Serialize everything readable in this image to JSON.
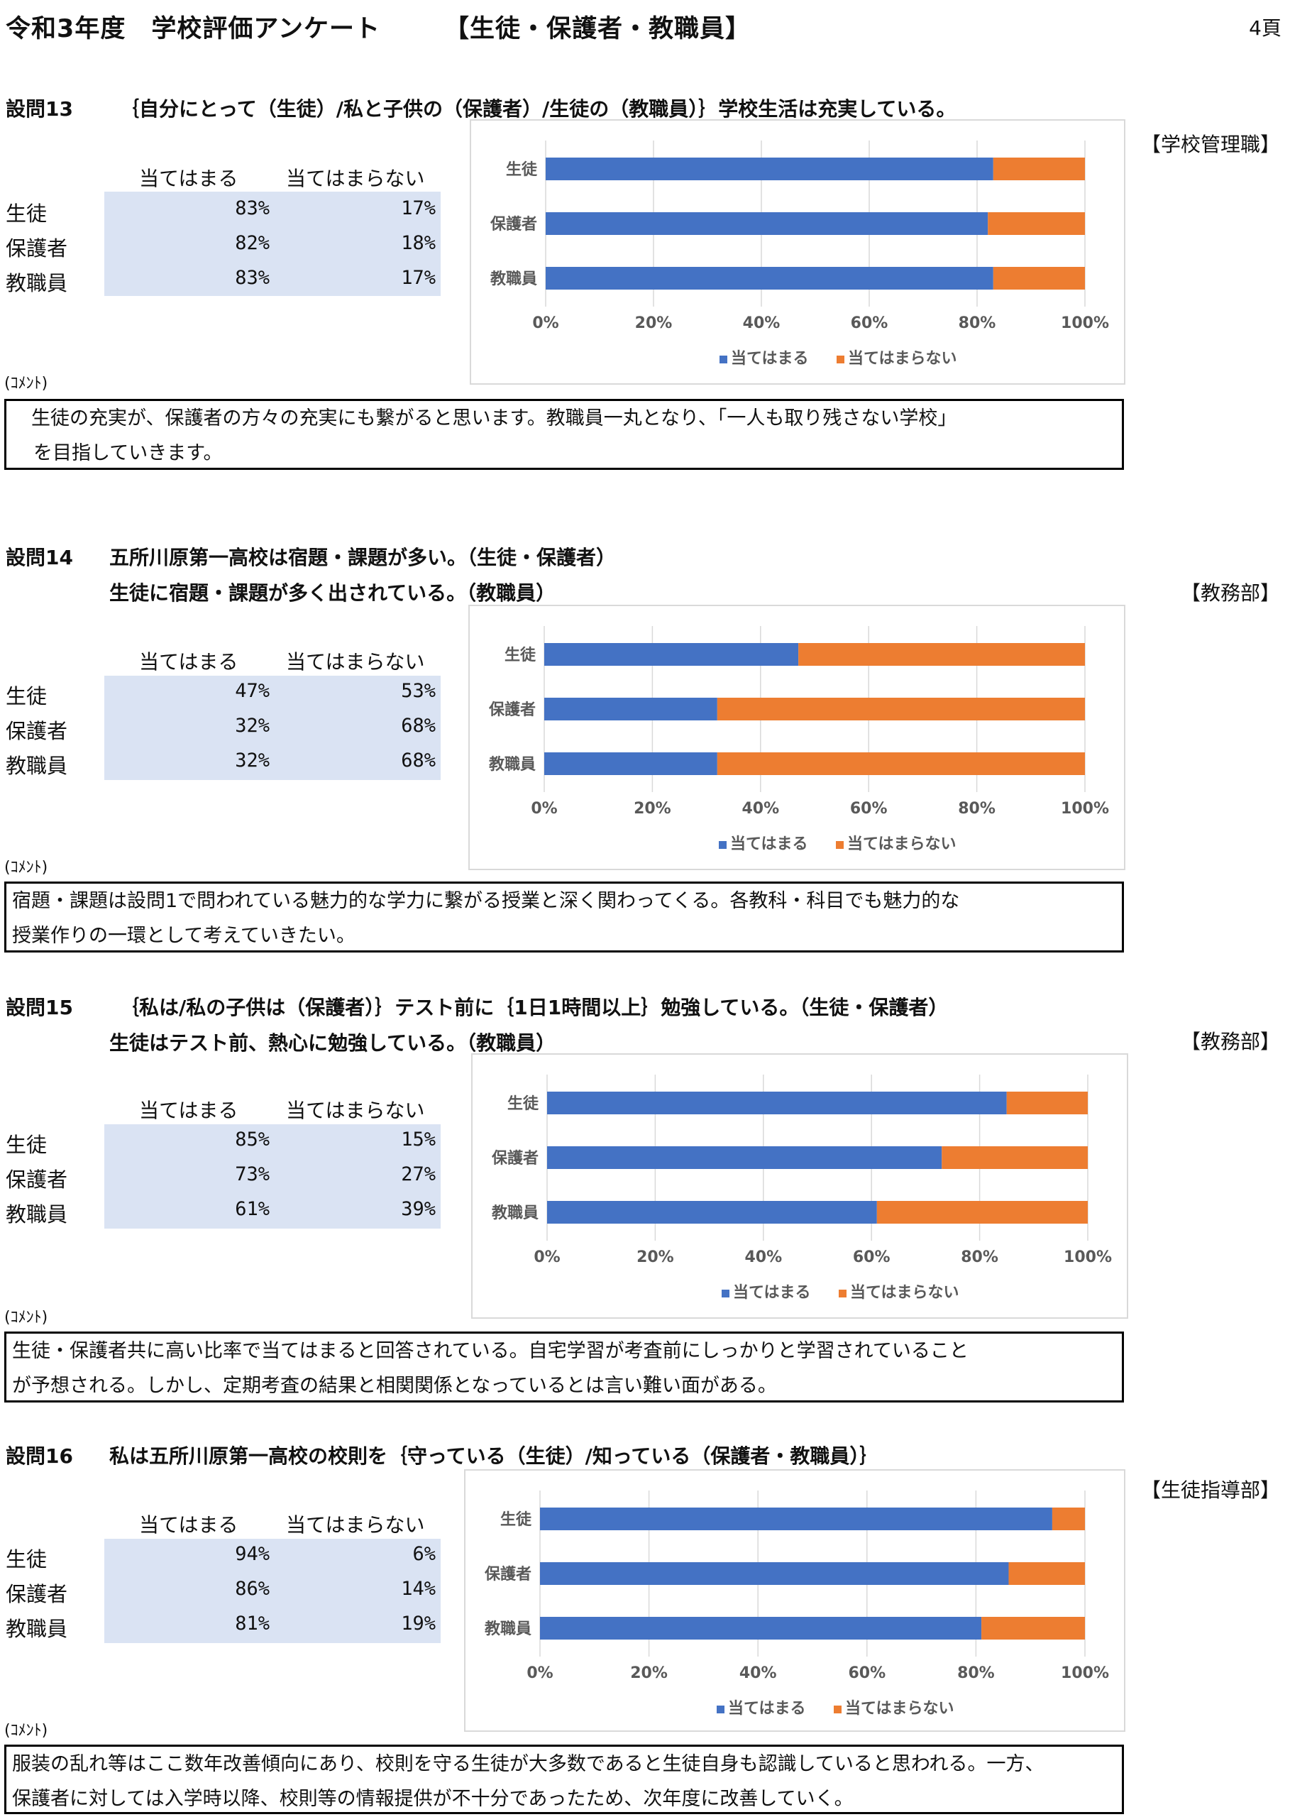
{
  "header": {
    "title_left": "令和3年度　学校評価アンケート",
    "title_right": "【生徒・保護者・教職員】",
    "page": "4頁"
  },
  "table_headers": {
    "yes": "当てはまる",
    "no": "当てはまらない"
  },
  "comment_label": "(ｺﾒﾝﾄ)",
  "colors": {
    "yes": "#4472c4",
    "no": "#ed7d31",
    "table_bg": "#dae3f3"
  },
  "sections": [
    {
      "id": "設問13",
      "question_lines": [
        "｛自分にとって（生徒）/私と子供の（保護者）/生徒の（教職員）｝学校生活は充実している。"
      ],
      "dept": "【学校管理職】",
      "rows": [
        {
          "label": "生徒",
          "yes": "83%",
          "no": "17%"
        },
        {
          "label": "保護者",
          "yes": "82%",
          "no": "18%"
        },
        {
          "label": "教職員",
          "yes": "83%",
          "no": "17%"
        }
      ],
      "comment_lines": [
        "　生徒の充実が、保護者の方々の充実にも繋がると思います。教職員一丸となり、「一人も取り残さない学校」",
        "を目指していきます。"
      ]
    },
    {
      "id": "設問14",
      "question_lines": [
        "五所川原第一高校は宿題・課題が多い。（生徒・保護者）",
        "生徒に宿題・課題が多く出されている。（教職員）"
      ],
      "dept": "【教務部】",
      "rows": [
        {
          "label": "生徒",
          "yes": "47%",
          "no": "53%"
        },
        {
          "label": "保護者",
          "yes": "32%",
          "no": "68%"
        },
        {
          "label": "教職員",
          "yes": "32%",
          "no": "68%"
        }
      ],
      "comment_lines": [
        "宿題・課題は設問1で問われている魅力的な学力に繋がる授業と深く関わってくる。各教科・科目でも魅力的な",
        "授業作りの一環として考えていきたい。"
      ]
    },
    {
      "id": "設問15",
      "question_lines": [
        "｛私は/私の子供は（保護者）｝テスト前に｛1日1時間以上｝勉強している。（生徒・保護者）",
        "生徒はテスト前、熱心に勉強している。（教職員）"
      ],
      "dept": "【教務部】",
      "rows": [
        {
          "label": "生徒",
          "yes": "85%",
          "no": "15%"
        },
        {
          "label": "保護者",
          "yes": "73%",
          "no": "27%"
        },
        {
          "label": "教職員",
          "yes": "61%",
          "no": "39%"
        }
      ],
      "comment_lines": [
        "生徒・保護者共に高い比率で当てはまると回答されている。自宅学習が考査前にしっかりと学習されていること",
        "が予想される。しかし、定期考査の結果と相関関係となっているとは言い難い面がある。"
      ]
    },
    {
      "id": "設問16",
      "question_lines": [
        "私は五所川原第一高校の校則を｛守っている（生徒）/知っている（保護者・教職員）｝"
      ],
      "dept": "【生徒指導部】",
      "rows": [
        {
          "label": "生徒",
          "yes": "94%",
          "no": "6%"
        },
        {
          "label": "保護者",
          "yes": "86%",
          "no": "14%"
        },
        {
          "label": "教職員",
          "yes": "81%",
          "no": "19%"
        }
      ],
      "comment_lines": [
        "服装の乱れ等はここ数年改善傾向にあり、校則を守る生徒が大多数であると生徒自身も認識していると思われる。一方、",
        "保護者に対しては入学時以降、校則等の情報提供が不十分であったため、次年度に改善していく。"
      ]
    }
  ],
  "chart_data": [
    {
      "type": "bar",
      "orientation": "horizontal",
      "stacked": "percent",
      "categories": [
        "生徒",
        "保護者",
        "教職員"
      ],
      "series": [
        {
          "name": "当てはまる",
          "values": [
            83,
            82,
            83
          ]
        },
        {
          "name": "当てはまらない",
          "values": [
            17,
            18,
            17
          ]
        }
      ],
      "xticks": [
        "0%",
        "20%",
        "40%",
        "60%",
        "80%",
        "100%"
      ],
      "xlim": [
        0,
        100
      ],
      "grid": true,
      "legend": "bottom"
    },
    {
      "type": "bar",
      "orientation": "horizontal",
      "stacked": "percent",
      "categories": [
        "生徒",
        "保護者",
        "教職員"
      ],
      "series": [
        {
          "name": "当てはまる",
          "values": [
            47,
            32,
            32
          ]
        },
        {
          "name": "当てはまらない",
          "values": [
            53,
            68,
            68
          ]
        }
      ],
      "xticks": [
        "0%",
        "20%",
        "40%",
        "60%",
        "80%",
        "100%"
      ],
      "xlim": [
        0,
        100
      ],
      "grid": true,
      "legend": "bottom"
    },
    {
      "type": "bar",
      "orientation": "horizontal",
      "stacked": "percent",
      "categories": [
        "生徒",
        "保護者",
        "教職員"
      ],
      "series": [
        {
          "name": "当てはまる",
          "values": [
            85,
            73,
            61
          ]
        },
        {
          "name": "当てはまらない",
          "values": [
            15,
            27,
            39
          ]
        }
      ],
      "xticks": [
        "0%",
        "20%",
        "40%",
        "60%",
        "80%",
        "100%"
      ],
      "xlim": [
        0,
        100
      ],
      "grid": true,
      "legend": "bottom"
    },
    {
      "type": "bar",
      "orientation": "horizontal",
      "stacked": "percent",
      "categories": [
        "生徒",
        "保護者",
        "教職員"
      ],
      "series": [
        {
          "name": "当てはまる",
          "values": [
            94,
            86,
            81
          ]
        },
        {
          "name": "当てはまらない",
          "values": [
            6,
            14,
            19
          ]
        }
      ],
      "xticks": [
        "0%",
        "20%",
        "40%",
        "60%",
        "80%",
        "100%"
      ],
      "xlim": [
        0,
        100
      ],
      "grid": true,
      "legend": "bottom"
    }
  ]
}
